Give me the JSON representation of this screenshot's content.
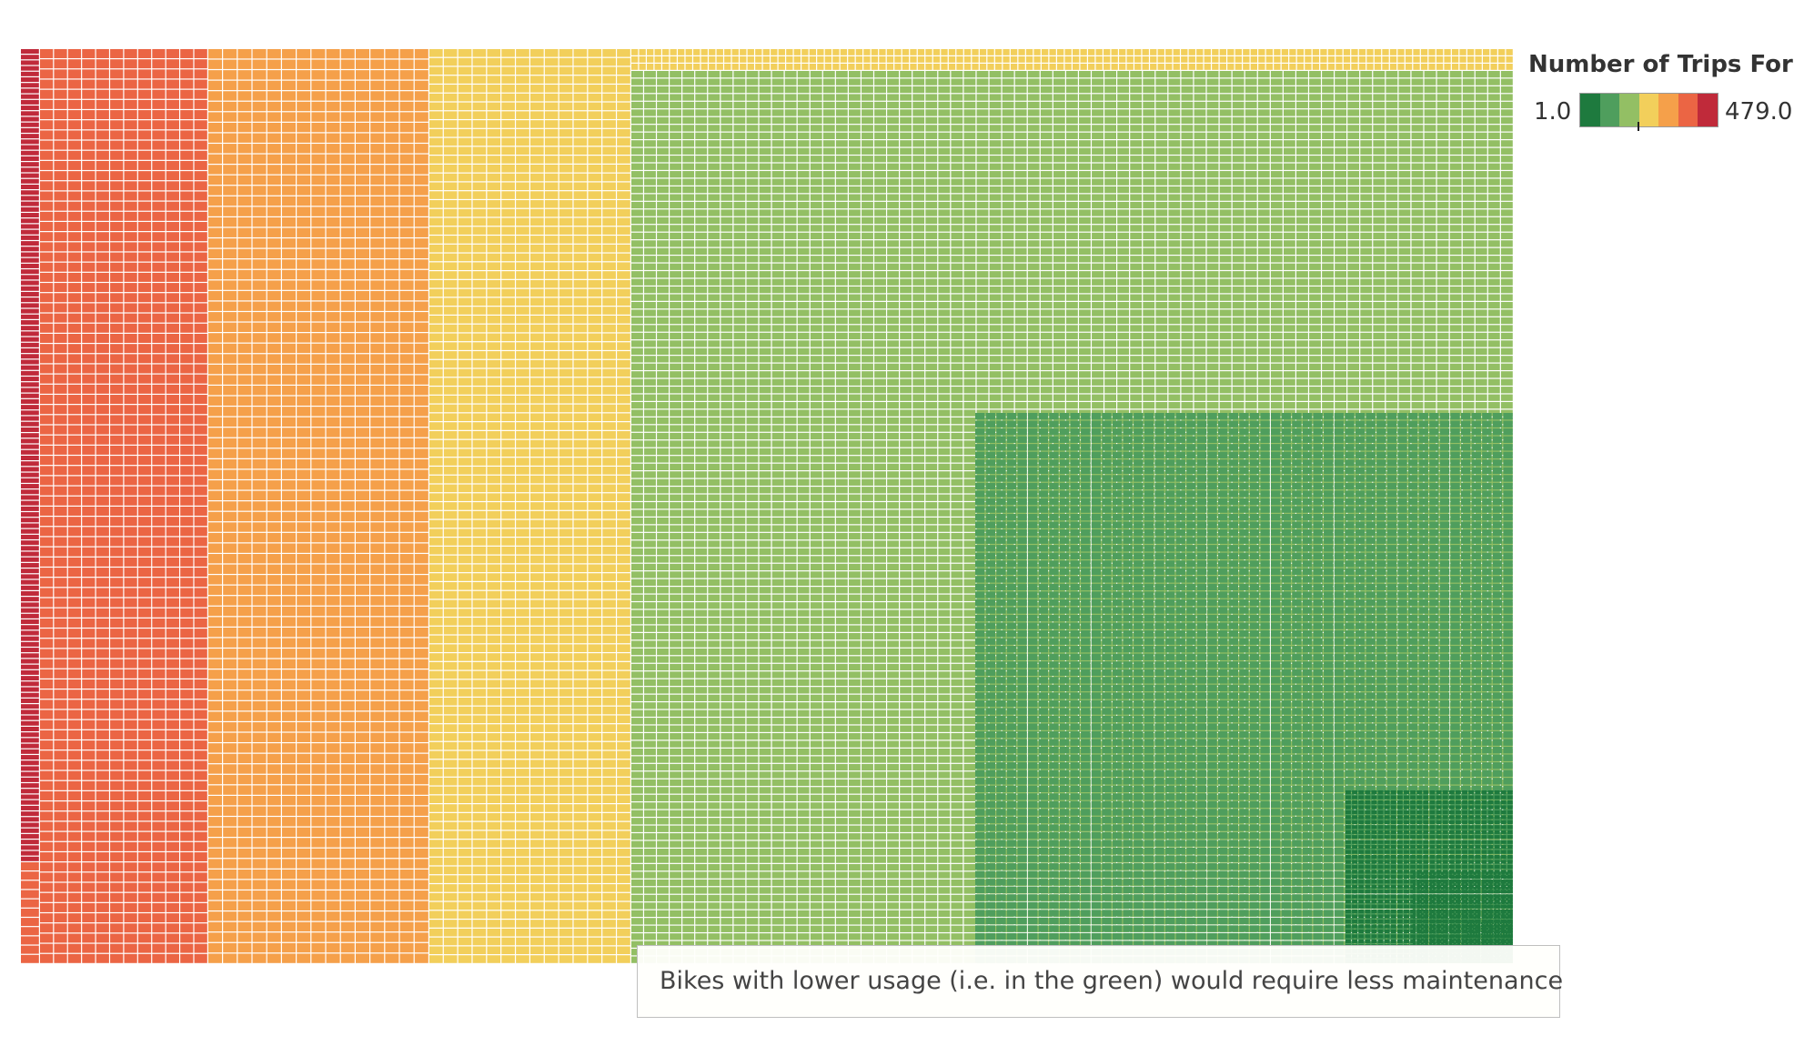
{
  "chart_data": {
    "type": "treemap",
    "title": "",
    "legend": {
      "title": "Number of Trips For E..",
      "min_label": "1.0",
      "max_label": "479.0",
      "min": 1.0,
      "max": 479.0,
      "marker_value": 200,
      "palette": [
        "#1e7a3e",
        "#4f9e5d",
        "#93bf64",
        "#f2cf5b",
        "#f5a04a",
        "#eb6544",
        "#c02a3a"
      ]
    },
    "annotation": "Bikes with lower usage (i.e. in the green) would require less maintenance",
    "grid": false,
    "color_groups": [
      {
        "color_index": 6,
        "trips_range": [
          412,
          479
        ]
      },
      {
        "color_index": 5,
        "trips_range": [
          343,
          411
        ]
      },
      {
        "color_index": 4,
        "trips_range": [
          275,
          342
        ]
      },
      {
        "color_index": 3,
        "trips_range": [
          207,
          274
        ]
      },
      {
        "color_index": 2,
        "trips_range": [
          139,
          206
        ]
      },
      {
        "color_index": 1,
        "trips_range": [
          70,
          138
        ]
      },
      {
        "color_index": 0,
        "trips_range": [
          1,
          69
        ]
      }
    ]
  }
}
